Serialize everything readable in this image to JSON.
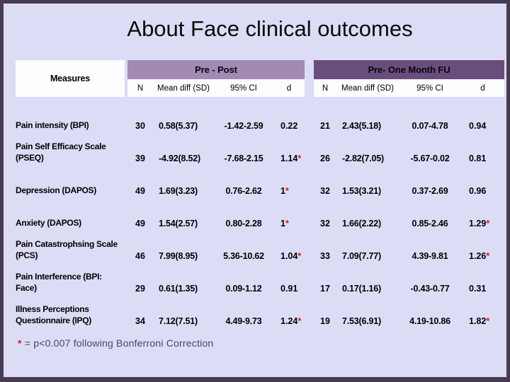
{
  "slide": {
    "title": "About Face clinical outcomes",
    "footnote_star": "*",
    "footnote_text": " = p<0.007 following Bonferroni Correction"
  },
  "table": {
    "measures_header": "Measures",
    "sections": [
      {
        "label": "Pre - Post",
        "columns": [
          "N",
          "Mean diff (SD)",
          "95% CI",
          "d"
        ]
      },
      {
        "label": "Pre- One Month FU",
        "columns": [
          "N",
          "Mean diff (SD)",
          "95% CI",
          "d"
        ]
      }
    ],
    "rows": [
      {
        "measure": "Pain intensity (BPI)",
        "pp": {
          "n": "30",
          "md": "0.58(5.37)",
          "ci": "-1.42-2.59",
          "d": "0.22",
          "star": ""
        },
        "fu": {
          "n": "21",
          "md": "2.43(5.18)",
          "ci": "0.07-4.78",
          "d": "0.94",
          "star": ""
        }
      },
      {
        "measure": "Pain Self Efficacy Scale (PSEQ)",
        "pp": {
          "n": "39",
          "md": "-4.92(8.52)",
          "ci": "-7.68-2.15",
          "d": "1.14",
          "star": "*"
        },
        "fu": {
          "n": "26",
          "md": "-2.82(7.05)",
          "ci": "-5.67-0.02",
          "d": "0.81",
          "star": ""
        }
      },
      {
        "measure": "Depression (DAPOS)",
        "pp": {
          "n": "49",
          "md": "1.69(3.23)",
          "ci": "0.76-2.62",
          "d": "1",
          "star": "*"
        },
        "fu": {
          "n": "32",
          "md": "1.53(3.21)",
          "ci": "0.37-2.69",
          "d": "0.96",
          "star": ""
        }
      },
      {
        "measure": "Anxiety (DAPOS)",
        "pp": {
          "n": "49",
          "md": "1.54(2.57)",
          "ci": "0.80-2.28",
          "d": "1",
          "star": "*"
        },
        "fu": {
          "n": "32",
          "md": "1.66(2.22)",
          "ci": "0.85-2.46",
          "d": "1.29",
          "star": "*"
        }
      },
      {
        "measure": "Pain Catastrophsing Scale (PCS)",
        "pp": {
          "n": "46",
          "md": "7.99(8.95)",
          "ci": "5.36-10.62",
          "d": "1.04",
          "star": "*"
        },
        "fu": {
          "n": "33",
          "md": "7.09(7.77)",
          "ci": "4.39-9.81",
          "d": "1.26",
          "star": "*"
        }
      },
      {
        "measure": "Pain Interference (BPI: Face)",
        "pp": {
          "n": "29",
          "md": "0.61(1.35)",
          "ci": "0.09-1.12",
          "d": "0.91",
          "star": ""
        },
        "fu": {
          "n": "17",
          "md": "0.17(1.16)",
          "ci": "-0.43-0.77",
          "d": "0.31",
          "star": ""
        }
      },
      {
        "measure": "Illness Perceptions Questionnaire (IPQ)",
        "pp": {
          "n": "34",
          "md": "7.12(7.51)",
          "ci": "4.49-9.73",
          "d": "1.24",
          "star": "*"
        },
        "fu": {
          "n": "19",
          "md": "7.53(6.91)",
          "ci": "4.19-10.86",
          "d": "1.82",
          "star": "*"
        }
      }
    ]
  },
  "colors": {
    "slide_background": "#dddcf6",
    "slide_border": "#473b52",
    "pre_post_band": "#a28ab4",
    "fu_band": "#694e7d",
    "cell_white": "#fdfcfe",
    "significance_red": "#c2202f",
    "text": "#000000",
    "footnote_text": "#47475a"
  }
}
